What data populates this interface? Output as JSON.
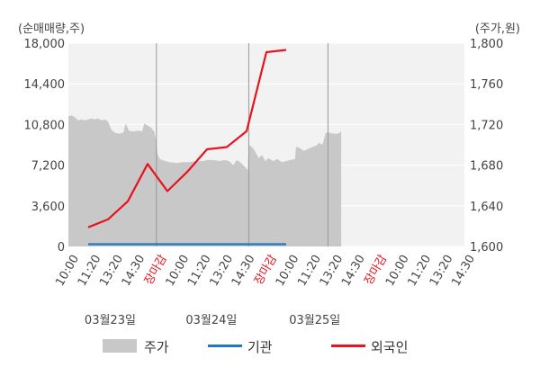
{
  "chart_data": {
    "type": "area+line",
    "left_axis_unit": "(순매매량,주)",
    "right_axis_unit": "(주가,원)",
    "left_ticks": [
      "0",
      "3,600",
      "7,200",
      "10,800",
      "14,400",
      "18,000"
    ],
    "left_tick_values": [
      0,
      3600,
      7200,
      10800,
      14400,
      18000
    ],
    "right_ticks": [
      "1,600",
      "1,640",
      "1,680",
      "1,720",
      "1,760",
      "1,800"
    ],
    "right_tick_values": [
      1600,
      1640,
      1680,
      1720,
      1760,
      1800
    ],
    "ylim_left": [
      0,
      18000
    ],
    "ylim_right": [
      1600,
      1800
    ],
    "x_slots": 18,
    "x_tick_labels": [
      {
        "text": "10:00",
        "close": false
      },
      {
        "text": "11:20",
        "close": false
      },
      {
        "text": "13:20",
        "close": false
      },
      {
        "text": "14:30",
        "close": false
      },
      {
        "text": "장마감",
        "close": true
      },
      {
        "text": "10:00",
        "close": false
      },
      {
        "text": "11:20",
        "close": false
      },
      {
        "text": "13:20",
        "close": false
      },
      {
        "text": "14:30",
        "close": false
      },
      {
        "text": "장마감",
        "close": true
      },
      {
        "text": "10:00",
        "close": false
      },
      {
        "text": "11:20",
        "close": false
      },
      {
        "text": "13:20",
        "close": false
      },
      {
        "text": "14:30",
        "close": false
      },
      {
        "text": "장마감",
        "close": true
      },
      {
        "text": "10:00",
        "close": false
      },
      {
        "text": "11:20",
        "close": false
      },
      {
        "text": "13:20",
        "close": false
      },
      {
        "text": "14:30",
        "close": false
      }
    ],
    "date_labels": [
      {
        "text": "03월23일",
        "slot": 1.9
      },
      {
        "text": "03월24일",
        "slot": 6.5
      },
      {
        "text": "03월25일",
        "slot": 11.2
      }
    ],
    "day_dividers": [
      4,
      8.2,
      11.8
    ],
    "grid": true,
    "legend_position": "bottom",
    "series": [
      {
        "name": "주가",
        "axis": "right",
        "style": "area",
        "color": "#c8c8c8",
        "points": [
          [
            0.0,
            1728
          ],
          [
            0.15,
            1729
          ],
          [
            0.3,
            1727
          ],
          [
            0.45,
            1724
          ],
          [
            0.6,
            1725
          ],
          [
            0.75,
            1724
          ],
          [
            0.9,
            1725
          ],
          [
            1.05,
            1726
          ],
          [
            1.2,
            1725
          ],
          [
            1.35,
            1726
          ],
          [
            1.5,
            1724
          ],
          [
            1.65,
            1725
          ],
          [
            1.8,
            1723
          ],
          [
            1.95,
            1715
          ],
          [
            2.1,
            1712
          ],
          [
            2.3,
            1711
          ],
          [
            2.5,
            1712
          ],
          [
            2.6,
            1721
          ],
          [
            2.75,
            1714
          ],
          [
            2.95,
            1713
          ],
          [
            3.15,
            1714
          ],
          [
            3.35,
            1713
          ],
          [
            3.45,
            1721
          ],
          [
            3.6,
            1719
          ],
          [
            3.75,
            1717
          ],
          [
            3.9,
            1713
          ],
          [
            4.0,
            1703
          ],
          [
            4.05,
            1691
          ],
          [
            4.15,
            1686
          ],
          [
            4.4,
            1684
          ],
          [
            4.6,
            1683
          ],
          [
            4.9,
            1682
          ],
          [
            5.2,
            1683
          ],
          [
            5.5,
            1683
          ],
          [
            5.8,
            1684
          ],
          [
            6.1,
            1684
          ],
          [
            6.3,
            1685
          ],
          [
            6.6,
            1685
          ],
          [
            6.9,
            1684
          ],
          [
            7.1,
            1685
          ],
          [
            7.3,
            1684
          ],
          [
            7.5,
            1680
          ],
          [
            7.65,
            1685
          ],
          [
            7.8,
            1683
          ],
          [
            8.0,
            1679
          ],
          [
            8.15,
            1675
          ],
          [
            8.2,
            1700
          ],
          [
            8.35,
            1698
          ],
          [
            8.5,
            1693
          ],
          [
            8.65,
            1687
          ],
          [
            8.8,
            1690
          ],
          [
            8.95,
            1684
          ],
          [
            9.1,
            1687
          ],
          [
            9.3,
            1684
          ],
          [
            9.5,
            1686
          ],
          [
            9.7,
            1683
          ],
          [
            9.9,
            1684
          ],
          [
            10.1,
            1685
          ],
          [
            10.3,
            1686
          ],
          [
            10.35,
            1698
          ],
          [
            10.5,
            1697
          ],
          [
            10.7,
            1694
          ],
          [
            10.9,
            1696
          ],
          [
            11.1,
            1698
          ],
          [
            11.25,
            1699
          ],
          [
            11.4,
            1702
          ],
          [
            11.55,
            1700
          ],
          [
            11.7,
            1712
          ],
          [
            11.85,
            1712
          ],
          [
            12.05,
            1711
          ],
          [
            12.25,
            1711
          ],
          [
            12.4,
            1713
          ]
        ]
      },
      {
        "name": "기관",
        "axis": "left",
        "style": "line",
        "color": "#1f77c8",
        "points": [
          [
            0.9,
            200
          ],
          [
            9.9,
            200
          ]
        ]
      },
      {
        "name": "외국인",
        "axis": "left",
        "style": "line",
        "color": "#e8131f",
        "points": [
          [
            0.9,
            1700
          ],
          [
            1.8,
            2400
          ],
          [
            2.7,
            4000
          ],
          [
            3.6,
            7300
          ],
          [
            4.5,
            4900
          ],
          [
            5.4,
            6600
          ],
          [
            6.3,
            8600
          ],
          [
            7.2,
            8800
          ],
          [
            8.1,
            10200
          ],
          [
            9.0,
            17200
          ],
          [
            9.9,
            17400
          ]
        ]
      }
    ]
  }
}
